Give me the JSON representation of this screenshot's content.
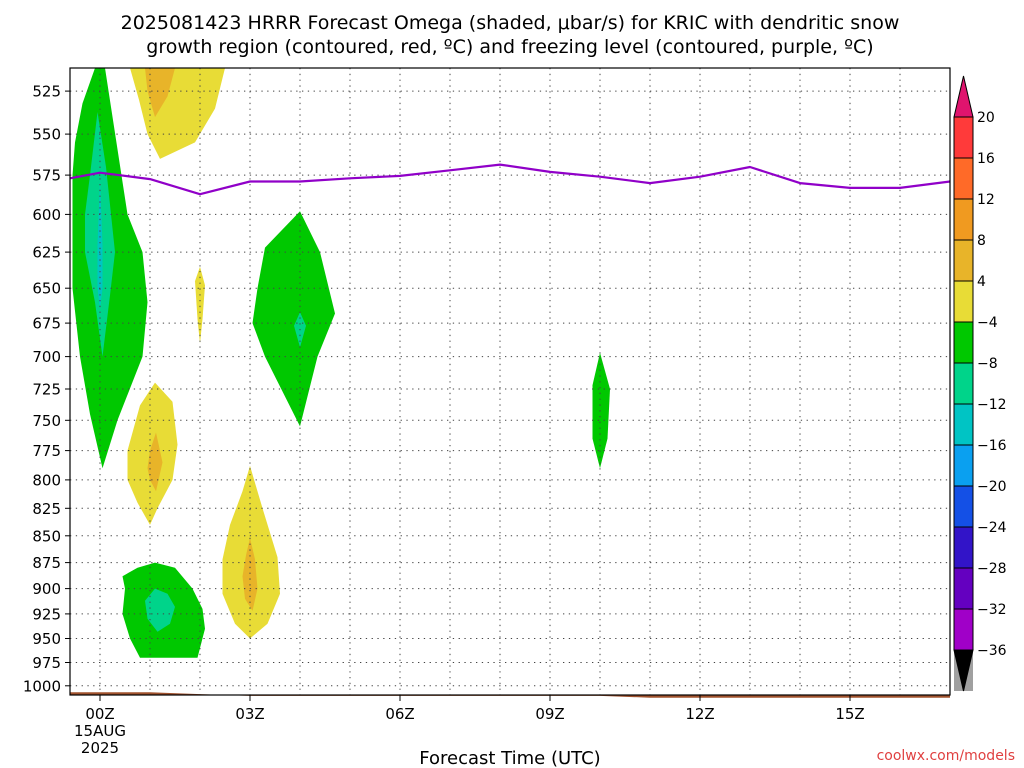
{
  "title_line1": "2025081423 HRRR Forecast Omega (shaded, μbar/s) for KRIC with dendritic snow",
  "title_line2": "growth region (contoured, red, ºC) and freezing level (contoured, purple, ºC)",
  "credit": "coolwx.com/models",
  "chart_data": {
    "type": "contour",
    "title": "2025081423 HRRR Forecast Omega (shaded, μbar/s) for KRIC with dendritic snow growth region (contoured, red, ºC) and freezing level (contoured, purple, ºC)",
    "xlabel": "Forecast Time (UTC)",
    "ylabel": "",
    "x_hours_range": [
      -0.6,
      17
    ],
    "y_pressure_range_hPa": [
      512,
      1010
    ],
    "y_scale": "log",
    "grid": true,
    "x_ticks": [
      {
        "hour": 0,
        "lines": [
          "00Z",
          "15AUG",
          "2025"
        ]
      },
      {
        "hour": 3,
        "lines": [
          "03Z"
        ]
      },
      {
        "hour": 6,
        "lines": [
          "06Z"
        ]
      },
      {
        "hour": 9,
        "lines": [
          "09Z"
        ]
      },
      {
        "hour": 12,
        "lines": [
          "12Z"
        ]
      },
      {
        "hour": 15,
        "lines": [
          "15Z"
        ]
      }
    ],
    "y_ticks": [
      525,
      550,
      575,
      600,
      625,
      650,
      675,
      700,
      725,
      750,
      775,
      800,
      825,
      850,
      875,
      900,
      925,
      950,
      975,
      1000
    ],
    "colorbar": {
      "labels": [
        "20",
        "16",
        "12",
        "8",
        "4",
        "−4",
        "−8",
        "−12",
        "−16",
        "−20",
        "−24",
        "−28",
        "−32",
        "−36"
      ],
      "upper_segments": [
        "#ff3a3a",
        "#ff6a28",
        "#f09a20",
        "#e8b429",
        "#e8dc36",
        "#ffffff"
      ],
      "lower_segments": [
        "#00c800",
        "#00d48a",
        "#00c4c4",
        "#0aa0f0",
        "#1450e6",
        "#3214c8",
        "#6400c0",
        "#a000c8",
        "#a0a0a0"
      ],
      "top_arrow": "#e0146e",
      "bottom_arrow": "#000000"
    },
    "shaded_regions": [
      {
        "level": "-4",
        "color": "#00c800",
        "points": [
          [
            -0.55,
            575
          ],
          [
            -0.5,
            555
          ],
          [
            -0.35,
            532
          ],
          [
            -0.1,
            512
          ],
          [
            0.1,
            512
          ],
          [
            0.55,
            600
          ],
          [
            0.85,
            625
          ],
          [
            0.95,
            660
          ],
          [
            0.85,
            700
          ],
          [
            0.35,
            750
          ],
          [
            0.05,
            790
          ],
          [
            -0.2,
            745
          ],
          [
            -0.4,
            700
          ],
          [
            -0.55,
            650
          ]
        ]
      },
      {
        "level": "-8",
        "color": "#00d48a",
        "points": [
          [
            -0.3,
            600
          ],
          [
            -0.2,
            575
          ],
          [
            -0.05,
            537
          ],
          [
            0.12,
            570
          ],
          [
            0.3,
            625
          ],
          [
            0.2,
            655
          ],
          [
            0.05,
            700
          ],
          [
            -0.1,
            660
          ],
          [
            -0.3,
            625
          ]
        ]
      },
      {
        "level": "-12",
        "color": "#00c4c4",
        "points": [
          [
            0,
            578
          ],
          [
            0.05,
            620
          ],
          [
            0.05,
            650
          ],
          [
            0,
            665
          ],
          [
            -0.05,
            650
          ],
          [
            -0.05,
            620
          ]
        ]
      },
      {
        "level": "-4",
        "color": "#00c800",
        "points": [
          [
            3.3,
            622
          ],
          [
            4,
            598
          ],
          [
            4.4,
            625
          ],
          [
            4.7,
            668
          ],
          [
            4.35,
            700
          ],
          [
            4,
            755
          ],
          [
            3.3,
            700
          ],
          [
            3.05,
            675
          ],
          [
            3.15,
            650
          ]
        ]
      },
      {
        "level": "-8",
        "color": "#00d48a",
        "points": [
          [
            4,
            667
          ],
          [
            4.12,
            677
          ],
          [
            4,
            693
          ],
          [
            3.88,
            677
          ]
        ]
      },
      {
        "level": "-4",
        "color": "#00c800",
        "points": [
          [
            9.85,
            722
          ],
          [
            10,
            697
          ],
          [
            10.2,
            725
          ],
          [
            10.15,
            765
          ],
          [
            10,
            790
          ],
          [
            9.85,
            765
          ]
        ]
      },
      {
        "level": "-4",
        "color": "#00c800",
        "points": [
          [
            0.45,
            888
          ],
          [
            0.5,
            900
          ],
          [
            0.45,
            925
          ],
          [
            0.6,
            950
          ],
          [
            0.8,
            970
          ],
          [
            1.95,
            970
          ],
          [
            2.1,
            940
          ],
          [
            2.05,
            920
          ],
          [
            1.85,
            900
          ],
          [
            1.5,
            880
          ],
          [
            1.1,
            875
          ],
          [
            0.75,
            880
          ]
        ]
      },
      {
        "level": "-8",
        "color": "#00d48a",
        "points": [
          [
            0.9,
            912
          ],
          [
            1.1,
            900
          ],
          [
            1.35,
            905
          ],
          [
            1.5,
            918
          ],
          [
            1.4,
            935
          ],
          [
            1.15,
            943
          ],
          [
            0.95,
            930
          ]
        ]
      },
      {
        "level": "4",
        "color": "#e8dc36",
        "points": [
          [
            0.6,
            512
          ],
          [
            2.5,
            512
          ],
          [
            2.3,
            535
          ],
          [
            1.9,
            555
          ],
          [
            1.2,
            565
          ],
          [
            0.95,
            550
          ],
          [
            0.78,
            530
          ]
        ]
      },
      {
        "level": "8",
        "color": "#e8b429",
        "points": [
          [
            0.9,
            512
          ],
          [
            1.5,
            512
          ],
          [
            1.35,
            528
          ],
          [
            1.1,
            540
          ],
          [
            0.95,
            525
          ]
        ]
      },
      {
        "level": "4",
        "color": "#e8dc36",
        "points": [
          [
            1.9,
            645
          ],
          [
            2,
            635
          ],
          [
            2.1,
            648
          ],
          [
            2.05,
            672
          ],
          [
            2,
            690
          ],
          [
            1.95,
            672
          ]
        ]
      },
      {
        "level": "4",
        "color": "#e8dc36",
        "points": [
          [
            0.55,
            775
          ],
          [
            0.8,
            738
          ],
          [
            1.1,
            720
          ],
          [
            1.45,
            735
          ],
          [
            1.55,
            770
          ],
          [
            1.45,
            800
          ],
          [
            1.15,
            825
          ],
          [
            1,
            840
          ],
          [
            0.75,
            820
          ],
          [
            0.55,
            800
          ]
        ]
      },
      {
        "level": "8",
        "color": "#e8b429",
        "points": [
          [
            0.95,
            790
          ],
          [
            1,
            775
          ],
          [
            1.12,
            760
          ],
          [
            1.25,
            785
          ],
          [
            1.12,
            810
          ],
          [
            1,
            800
          ]
        ]
      },
      {
        "level": "4",
        "color": "#e8dc36",
        "points": [
          [
            2.45,
            872
          ],
          [
            2.6,
            840
          ],
          [
            2.85,
            810
          ],
          [
            3,
            788
          ],
          [
            3.25,
            825
          ],
          [
            3.55,
            870
          ],
          [
            3.6,
            905
          ],
          [
            3.35,
            935
          ],
          [
            3,
            950
          ],
          [
            2.7,
            935
          ],
          [
            2.45,
            905
          ]
        ]
      },
      {
        "level": "8",
        "color": "#e8b429",
        "points": [
          [
            2.85,
            888
          ],
          [
            2.92,
            868
          ],
          [
            3,
            852
          ],
          [
            3.1,
            872
          ],
          [
            3.15,
            900
          ],
          [
            3.05,
            922
          ],
          [
            2.9,
            910
          ]
        ]
      }
    ],
    "freezing_level_line": {
      "color": "#9000c8",
      "x": [
        -0.6,
        0,
        1,
        2,
        3,
        4,
        5,
        6,
        7,
        8,
        9,
        10,
        11,
        12,
        13,
        14,
        15,
        16,
        17
      ],
      "y": [
        577,
        573.5,
        577.5,
        587,
        579,
        579,
        577,
        575.5,
        572,
        568.5,
        573,
        576,
        580,
        576,
        570,
        580,
        583,
        583,
        579
      ]
    },
    "ground_fill": {
      "color": "#a0522d",
      "x": [
        -0.6,
        0,
        1,
        2,
        3,
        6,
        9,
        10,
        11,
        17
      ],
      "y": [
        1007,
        1007,
        1007,
        1009,
        1011,
        1011,
        1011,
        1011,
        1013,
        1013
      ]
    }
  }
}
